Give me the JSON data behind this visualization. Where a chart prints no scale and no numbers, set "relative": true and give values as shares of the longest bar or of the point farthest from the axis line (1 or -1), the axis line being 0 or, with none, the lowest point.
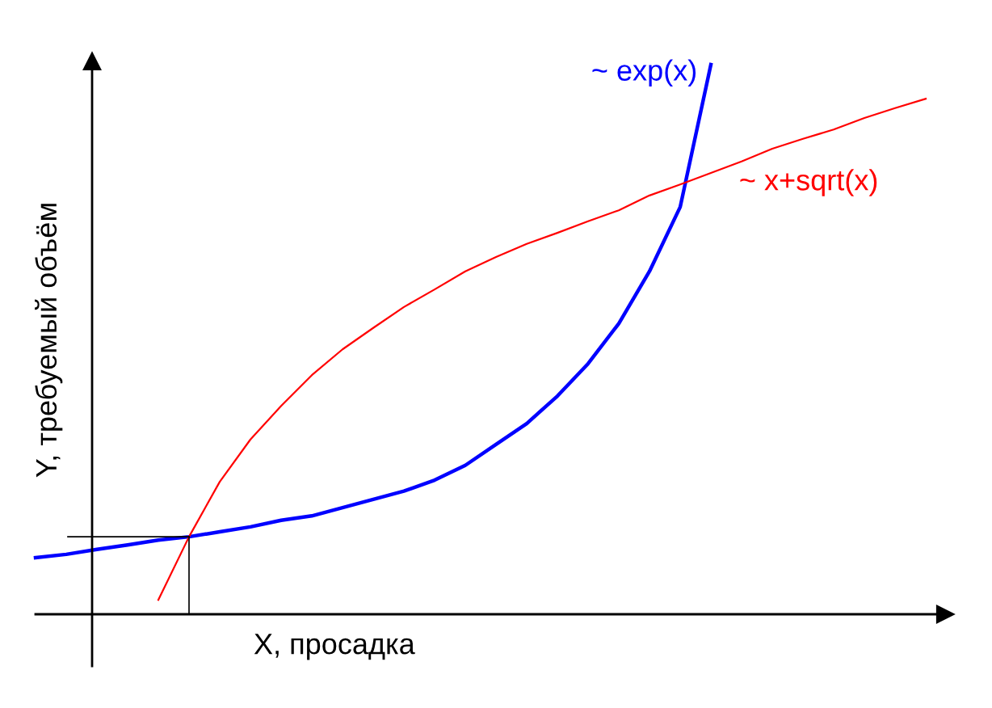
{
  "chart_data": {
    "type": "line",
    "relative": true,
    "xlabel": "X, просадка",
    "ylabel": "Y, требуемый объём",
    "legend": false,
    "categories": [
      null,
      null,
      null,
      null,
      null,
      null,
      null,
      null,
      null,
      null,
      null,
      null,
      null,
      null,
      null,
      null,
      null,
      null,
      null,
      null,
      null,
      null,
      null,
      null,
      null,
      null,
      null,
      null,
      null,
      null
    ],
    "series": [
      {
        "name": "~ exp(x)",
        "color": "#0000ff",
        "values": [
          0.103,
          0.109,
          0.118,
          0.126,
          0.135,
          0.141,
          0.15,
          0.159,
          0.171,
          0.179,
          0.194,
          0.209,
          0.224,
          0.244,
          0.271,
          0.309,
          0.347,
          0.397,
          0.456,
          0.529,
          0.624,
          0.741,
          1.0,
          null,
          null,
          null,
          null,
          null,
          null,
          null
        ]
      },
      {
        "name": "~ x+sqrt(x)",
        "color": "#ff0000",
        "values": [
          null,
          null,
          null,
          null,
          0.026,
          0.141,
          0.241,
          0.318,
          0.379,
          0.435,
          0.482,
          0.521,
          0.559,
          0.591,
          0.624,
          0.65,
          0.674,
          0.694,
          0.715,
          0.735,
          0.762,
          0.782,
          0.803,
          0.824,
          0.847,
          0.865,
          0.882,
          0.903,
          0.921,
          0.938
        ]
      }
    ]
  }
}
